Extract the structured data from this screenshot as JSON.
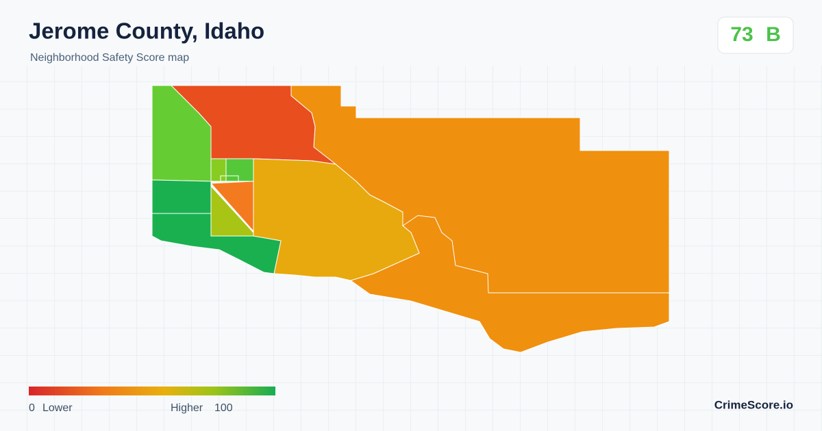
{
  "header": {
    "title": "Jerome County, Idaho",
    "subtitle": "Neighborhood Safety Score map"
  },
  "score": {
    "value": 73,
    "grade": "B"
  },
  "legend": {
    "min": 0,
    "min_label": "Lower",
    "max_label": "Higher",
    "max": 100
  },
  "footer": {
    "brand": "CrimeScore.io"
  }
}
